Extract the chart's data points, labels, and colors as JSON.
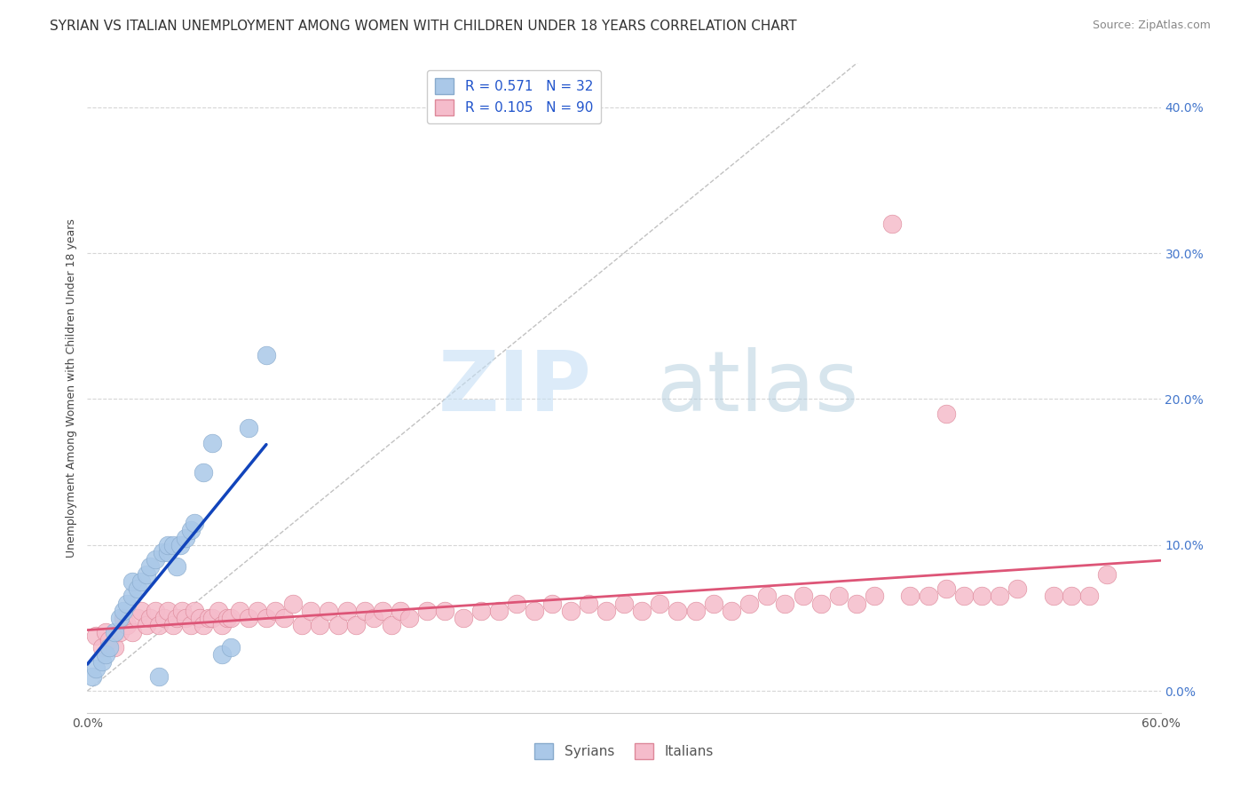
{
  "title": "SYRIAN VS ITALIAN UNEMPLOYMENT AMONG WOMEN WITH CHILDREN UNDER 18 YEARS CORRELATION CHART",
  "source": "Source: ZipAtlas.com",
  "ylabel": "Unemployment Among Women with Children Under 18 years",
  "xlim": [
    0.0,
    0.6
  ],
  "ylim": [
    -0.015,
    0.43
  ],
  "xtick_positions": [
    0.0,
    0.6
  ],
  "xtick_labels": [
    "0.0%",
    "60.0%"
  ],
  "ytick_positions": [
    0.0,
    0.1,
    0.2,
    0.3,
    0.4
  ],
  "ytick_labels": [
    "0.0%",
    "10.0%",
    "20.0%",
    "30.0%",
    "40.0%"
  ],
  "background_color": "#ffffff",
  "grid_color": "#cccccc",
  "syrian_color": "#aac8e8",
  "italian_color": "#f5bccb",
  "syrian_edge_color": "#88aacc",
  "italian_edge_color": "#dd8899",
  "syrian_trend_color": "#1144bb",
  "italian_trend_color": "#dd5577",
  "ref_line_color": "#bbbbbb",
  "R_syrian": 0.571,
  "N_syrian": 32,
  "R_italian": 0.105,
  "N_italian": 90,
  "legend_label_syrian": "Syrians",
  "legend_label_italian": "Italians",
  "watermark_zip": "ZIP",
  "watermark_atlas": "atlas",
  "title_fontsize": 11,
  "axis_label_fontsize": 9,
  "tick_fontsize": 10,
  "legend_fontsize": 11,
  "ytick_color": "#4477cc",
  "xtick_color": "#555555",
  "syrian_x": [
    0.003,
    0.005,
    0.008,
    0.01,
    0.012,
    0.015,
    0.018,
    0.02,
    0.022,
    0.025,
    0.025,
    0.028,
    0.03,
    0.033,
    0.035,
    0.038,
    0.04,
    0.042,
    0.045,
    0.045,
    0.048,
    0.05,
    0.052,
    0.055,
    0.058,
    0.06,
    0.065,
    0.07,
    0.075,
    0.08,
    0.09,
    0.1
  ],
  "syrian_y": [
    0.01,
    0.015,
    0.02,
    0.025,
    0.03,
    0.04,
    0.05,
    0.055,
    0.06,
    0.065,
    0.075,
    0.07,
    0.075,
    0.08,
    0.085,
    0.09,
    0.01,
    0.095,
    0.095,
    0.1,
    0.1,
    0.085,
    0.1,
    0.105,
    0.11,
    0.115,
    0.15,
    0.17,
    0.025,
    0.03,
    0.18,
    0.23
  ],
  "italian_x": [
    0.005,
    0.008,
    0.01,
    0.012,
    0.015,
    0.018,
    0.02,
    0.022,
    0.025,
    0.028,
    0.03,
    0.033,
    0.035,
    0.038,
    0.04,
    0.043,
    0.045,
    0.048,
    0.05,
    0.053,
    0.055,
    0.058,
    0.06,
    0.063,
    0.065,
    0.068,
    0.07,
    0.073,
    0.075,
    0.078,
    0.08,
    0.085,
    0.09,
    0.095,
    0.1,
    0.105,
    0.11,
    0.115,
    0.12,
    0.125,
    0.13,
    0.135,
    0.14,
    0.145,
    0.15,
    0.155,
    0.16,
    0.165,
    0.17,
    0.175,
    0.18,
    0.19,
    0.2,
    0.21,
    0.22,
    0.23,
    0.24,
    0.25,
    0.26,
    0.27,
    0.28,
    0.29,
    0.3,
    0.31,
    0.32,
    0.33,
    0.34,
    0.35,
    0.36,
    0.37,
    0.38,
    0.39,
    0.4,
    0.41,
    0.42,
    0.43,
    0.44,
    0.46,
    0.47,
    0.48,
    0.49,
    0.5,
    0.51,
    0.52,
    0.54,
    0.55,
    0.56,
    0.57,
    0.45,
    0.48
  ],
  "italian_y": [
    0.038,
    0.03,
    0.04,
    0.035,
    0.03,
    0.04,
    0.05,
    0.045,
    0.04,
    0.05,
    0.055,
    0.045,
    0.05,
    0.055,
    0.045,
    0.05,
    0.055,
    0.045,
    0.05,
    0.055,
    0.05,
    0.045,
    0.055,
    0.05,
    0.045,
    0.05,
    0.05,
    0.055,
    0.045,
    0.05,
    0.05,
    0.055,
    0.05,
    0.055,
    0.05,
    0.055,
    0.05,
    0.06,
    0.045,
    0.055,
    0.045,
    0.055,
    0.045,
    0.055,
    0.045,
    0.055,
    0.05,
    0.055,
    0.045,
    0.055,
    0.05,
    0.055,
    0.055,
    0.05,
    0.055,
    0.055,
    0.06,
    0.055,
    0.06,
    0.055,
    0.06,
    0.055,
    0.06,
    0.055,
    0.06,
    0.055,
    0.055,
    0.06,
    0.055,
    0.06,
    0.065,
    0.06,
    0.065,
    0.06,
    0.065,
    0.06,
    0.065,
    0.065,
    0.065,
    0.07,
    0.065,
    0.065,
    0.065,
    0.07,
    0.065,
    0.065,
    0.065,
    0.08,
    0.32,
    0.19
  ]
}
